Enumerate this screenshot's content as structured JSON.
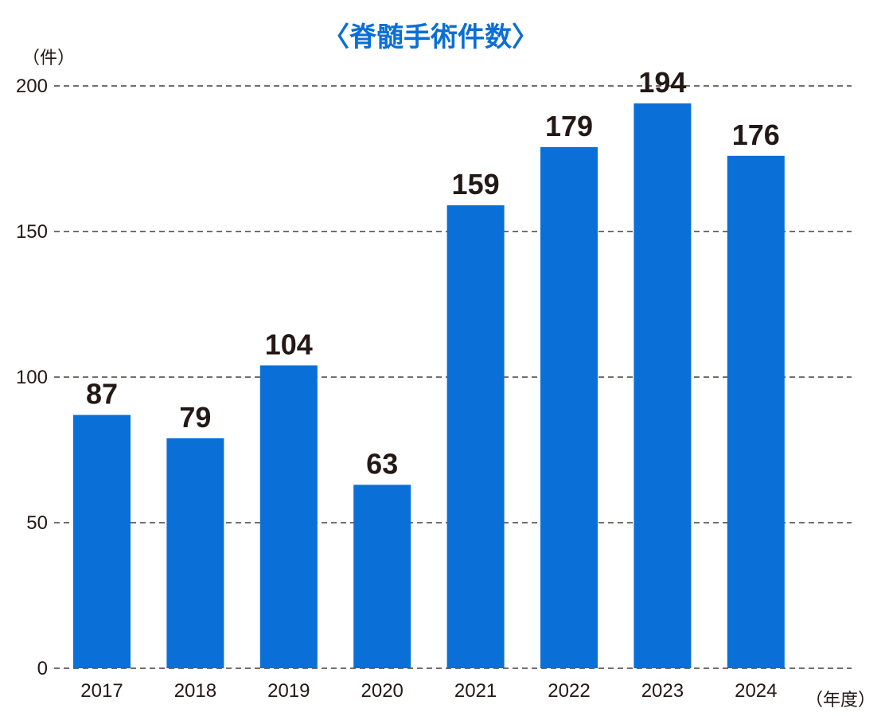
{
  "chart_data": {
    "type": "bar",
    "title": "〈脊髄手術件数〉",
    "y_unit_label": "（件）",
    "x_unit_label": "（年度）",
    "categories": [
      "2017",
      "2018",
      "2019",
      "2020",
      "2021",
      "2022",
      "2023",
      "2024"
    ],
    "values": [
      87,
      79,
      104,
      63,
      159,
      179,
      194,
      176
    ],
    "ylim": [
      0,
      200
    ],
    "yticks": [
      "0",
      "50",
      "100",
      "150",
      "200"
    ],
    "grid": true,
    "legend": "none",
    "colors": {
      "bar": "#0a6fd6",
      "title": "#0a6fd6",
      "text": "#231815"
    }
  }
}
